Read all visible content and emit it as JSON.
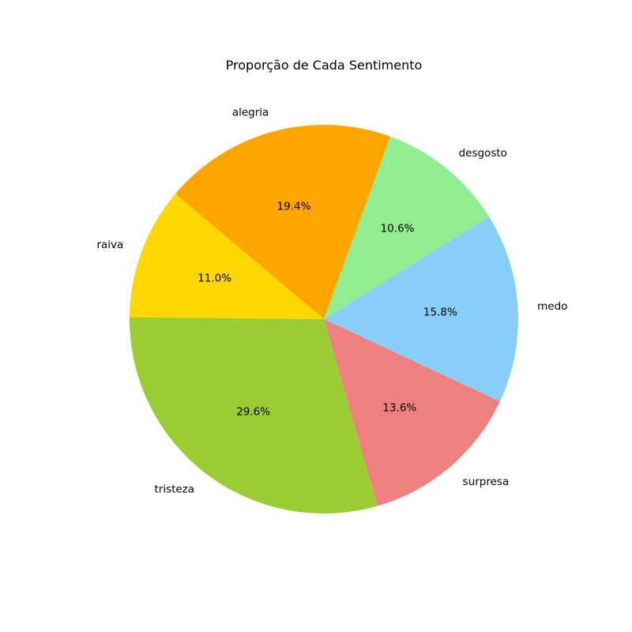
{
  "chart_data": {
    "type": "pie",
    "title": "Proporção de Cada Sentimento",
    "categories": [
      "alegria",
      "raiva",
      "tristeza",
      "surpresa",
      "medo",
      "desgosto"
    ],
    "values": [
      19.4,
      11.0,
      29.6,
      13.6,
      15.8,
      10.6
    ],
    "value_labels": [
      "19.4%",
      "11.0%",
      "29.6%",
      "13.6%",
      "15.8%",
      "10.6%"
    ],
    "colors": [
      "#FFA500",
      "#FFD700",
      "#9ACD32",
      "#F08080",
      "#87CEFA",
      "#90EE90"
    ],
    "start_angle_deg": 70,
    "direction": "counterclockwise",
    "legend": "none"
  }
}
